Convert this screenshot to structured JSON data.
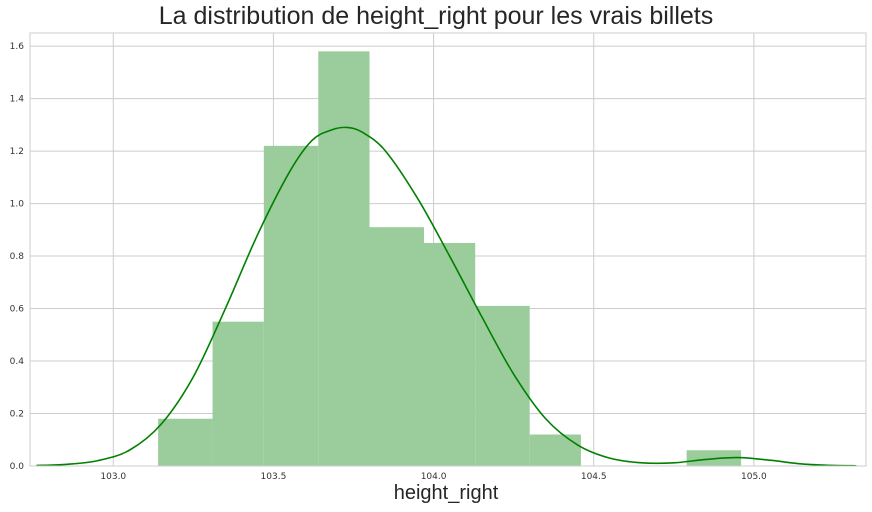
{
  "chart_data": {
    "type": "bar",
    "title": "La distribution de height_right pour les vrais billets",
    "xlabel": "height_right",
    "ylabel": "",
    "xlim": [
      102.74,
      105.35
    ],
    "ylim": [
      0,
      1.65
    ],
    "xticks": [
      103.0,
      103.5,
      104.0,
      104.5,
      105.0
    ],
    "xtick_labels": [
      "103.0",
      "103.5",
      "104.0",
      "104.5",
      "105.0"
    ],
    "yticks": [
      0.0,
      0.2,
      0.4,
      0.6,
      0.8,
      1.0,
      1.2,
      1.4,
      1.6
    ],
    "ytick_labels": [
      "0.0",
      "0.2",
      "0.4",
      "0.6",
      "0.8",
      "1.0",
      "1.2",
      "1.4",
      "1.6"
    ],
    "grid": true,
    "histogram": {
      "color": "#9bcc9b",
      "bins": [
        {
          "x0": 103.14,
          "x1": 103.31,
          "density": 0.18
        },
        {
          "x0": 103.31,
          "x1": 103.47,
          "density": 0.55
        },
        {
          "x0": 103.47,
          "x1": 103.64,
          "density": 1.22
        },
        {
          "x0": 103.64,
          "x1": 103.8,
          "density": 1.58
        },
        {
          "x0": 103.8,
          "x1": 103.97,
          "density": 0.91
        },
        {
          "x0": 103.97,
          "x1": 104.13,
          "density": 0.85
        },
        {
          "x0": 104.13,
          "x1": 104.3,
          "density": 0.61
        },
        {
          "x0": 104.3,
          "x1": 104.46,
          "density": 0.12
        },
        {
          "x0": 104.46,
          "x1": 104.63,
          "density": 0.0
        },
        {
          "x0": 104.63,
          "x1": 104.79,
          "density": 0.0
        },
        {
          "x0": 104.79,
          "x1": 104.96,
          "density": 0.06
        }
      ]
    },
    "kde": {
      "color": "#008000",
      "x": [
        102.76,
        102.85,
        102.95,
        103.05,
        103.15,
        103.25,
        103.35,
        103.45,
        103.55,
        103.62,
        103.68,
        103.73,
        103.78,
        103.85,
        103.95,
        104.05,
        104.15,
        104.25,
        104.35,
        104.45,
        104.55,
        104.65,
        104.75,
        104.85,
        104.95,
        105.05,
        105.15,
        105.25,
        105.32
      ],
      "y": [
        0.002,
        0.006,
        0.02,
        0.06,
        0.16,
        0.34,
        0.6,
        0.88,
        1.12,
        1.24,
        1.28,
        1.29,
        1.27,
        1.2,
        1.02,
        0.8,
        0.57,
        0.35,
        0.18,
        0.08,
        0.03,
        0.012,
        0.012,
        0.025,
        0.032,
        0.022,
        0.008,
        0.002,
        0.001
      ]
    }
  }
}
